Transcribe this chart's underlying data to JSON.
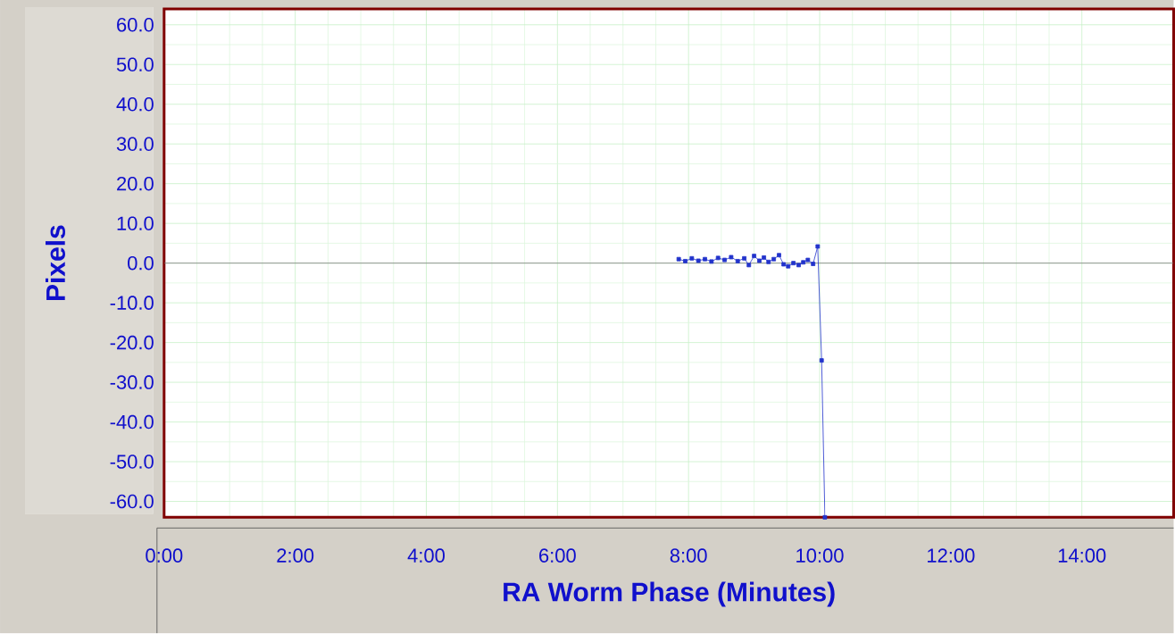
{
  "chart_data": {
    "type": "line",
    "xlabel": "RA Worm Phase (Minutes)",
    "ylabel": "Pixels",
    "xlim": [
      0,
      15.4
    ],
    "ylim": [
      -64,
      64
    ],
    "xticks": [
      {
        "value": 0,
        "label": "0:00"
      },
      {
        "value": 2,
        "label": "2:00"
      },
      {
        "value": 4,
        "label": "4:00"
      },
      {
        "value": 6,
        "label": "6:00"
      },
      {
        "value": 8,
        "label": "8:00"
      },
      {
        "value": 10,
        "label": "10:00"
      },
      {
        "value": 12,
        "label": "12:00"
      },
      {
        "value": 14,
        "label": "14:00"
      }
    ],
    "yticks": [
      {
        "value": 60,
        "label": "60.0"
      },
      {
        "value": 50,
        "label": "50.0"
      },
      {
        "value": 40,
        "label": "40.0"
      },
      {
        "value": 30,
        "label": "30.0"
      },
      {
        "value": 20,
        "label": "20.0"
      },
      {
        "value": 10,
        "label": "10.0"
      },
      {
        "value": 0,
        "label": "0.0"
      },
      {
        "value": -10,
        "label": "-10.0"
      },
      {
        "value": -20,
        "label": "-20.0"
      },
      {
        "value": -30,
        "label": "-30.0"
      },
      {
        "value": -40,
        "label": "-40.0"
      },
      {
        "value": -50,
        "label": "-50.0"
      },
      {
        "value": -60,
        "label": "-60.0"
      }
    ],
    "grid": true,
    "marker": "square",
    "line_style": "solid",
    "ref_lines": [
      {
        "axis": "y",
        "value": 0,
        "color": "#808080"
      }
    ],
    "series": [
      {
        "color": "#2233cc",
        "x": [
          7.85,
          7.95,
          8.05,
          8.15,
          8.25,
          8.35,
          8.45,
          8.55,
          8.65,
          8.75,
          8.85,
          8.92,
          9.0,
          9.08,
          9.15,
          9.22,
          9.3,
          9.38,
          9.45,
          9.52,
          9.6,
          9.68,
          9.75,
          9.82,
          9.9,
          9.97,
          10.03,
          10.08
        ],
        "values": [
          1.0,
          0.5,
          1.2,
          0.6,
          1.0,
          0.4,
          1.3,
          0.8,
          1.5,
          0.5,
          1.2,
          -0.5,
          1.8,
          0.6,
          1.4,
          0.3,
          1.0,
          2.0,
          -0.3,
          -0.8,
          0.0,
          -0.5,
          0.2,
          0.8,
          -0.2,
          4.2,
          -24.5,
          -64
        ]
      }
    ]
  }
}
